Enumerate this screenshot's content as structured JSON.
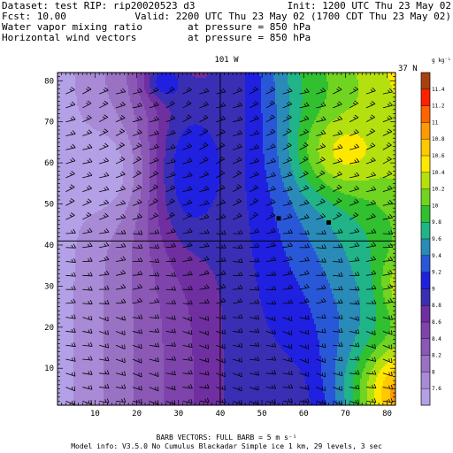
{
  "header": {
    "line1_left": "Dataset: test  RIP: rip20020523 d3",
    "line1_right": "Init: 1200 UTC Thu 23 May 02",
    "line2_left": "Fcst:   10.00",
    "line2_right": "Valid: 2200 UTC Thu 23 May 02 (1700 CDT Thu 23 May 02)",
    "line3_left": "Water vapor mixing ratio",
    "line3_right": "at pressure =  850 hPa",
    "line4_left": "Horizontal wind vectors",
    "line4_right": "at pressure =  850 hPa"
  },
  "footer": {
    "barb_line": "BARB VECTORS:  FULL BARB = 5 m s⁻¹",
    "model_line": "Model info: V3.5.0 No Cumulus Blackadar  Simple ice    1 km,  29 levels,     3 sec"
  },
  "chart_data": {
    "type": "heatmap",
    "title": "",
    "xlabel": "",
    "ylabel": "",
    "xlim": [
      1,
      82
    ],
    "ylim": [
      1,
      82
    ],
    "xticks": [
      "10",
      "20",
      "30",
      "40",
      "50",
      "60",
      "70",
      "80"
    ],
    "yticks": [
      "10",
      "20",
      "30",
      "40",
      "50",
      "60",
      "70",
      "80"
    ],
    "x_tick_values": [
      10,
      20,
      30,
      40,
      50,
      60,
      70,
      80
    ],
    "y_tick_values": [
      10,
      20,
      30,
      40,
      50,
      60,
      70,
      80
    ],
    "crosshair": {
      "x": 40,
      "y": 41,
      "top_label": "101 W",
      "right_label": "37 N"
    },
    "markers": [
      {
        "x": 54,
        "y": 46.5
      },
      {
        "x": 66,
        "y": 45.5
      }
    ],
    "colorbar": {
      "unit": "g kg⁻¹",
      "levels": [
        "7.6",
        "8",
        "8.2",
        "8.4",
        "8.6",
        "8.8",
        "9",
        "9.2",
        "9.4",
        "9.6",
        "9.8",
        "10",
        "10.2",
        "10.4",
        "10.6",
        "10.8",
        "11",
        "11.2",
        "11.4"
      ],
      "colors": [
        "#b4a0e6",
        "#a88ad6",
        "#9a72c4",
        "#8b58b6",
        "#7e44ac",
        "#6f2fa0",
        "#3a2fb4",
        "#2020e0",
        "#2858d8",
        "#2a8ab8",
        "#20b488",
        "#30c030",
        "#70d420",
        "#b4e010",
        "#ffe800",
        "#ffc800",
        "#ff9a00",
        "#ff6400",
        "#ff2000",
        "#a84010"
      ]
    }
  }
}
